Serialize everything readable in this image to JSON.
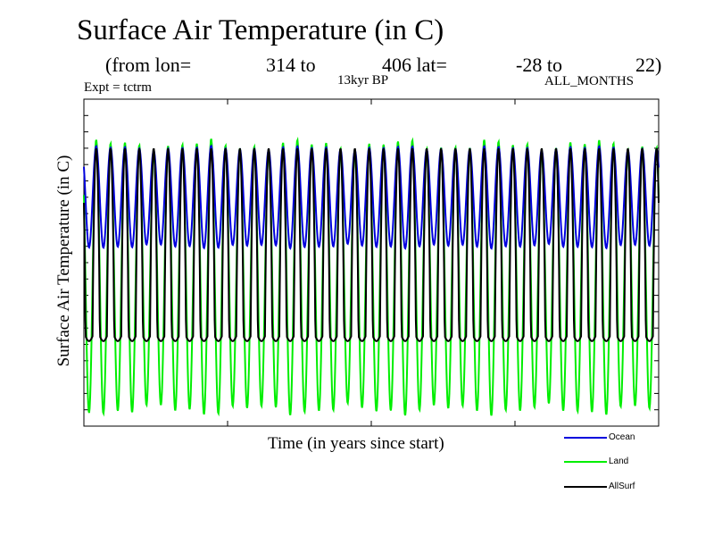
{
  "chart_data": {
    "type": "line",
    "title": "Surface Air Temperature (in C)",
    "subtitle": {
      "prefix": "(from lon=",
      "lon_start": "314 to",
      "lon_end_and_lat": "406 lat=",
      "lat_start": "-28 to",
      "lat_end": "22)"
    },
    "experiment": "Expt = tctrm",
    "period": "13kyr BP",
    "months": "ALL_MONTHS",
    "xlabel": "Time (in years since start)",
    "ylabel": "Surface Air Temperature (in C)",
    "cycles": 40,
    "ylim": [
      0,
      100
    ],
    "series": [
      {
        "name": "Ocean",
        "color": "#0000dd",
        "max": 85,
        "min": 55
      },
      {
        "name": "Land",
        "color": "#00ee00",
        "max": 86,
        "min": 5
      },
      {
        "name": "AllSurf",
        "color": "#000000",
        "max": 85,
        "min": 26
      }
    ]
  }
}
